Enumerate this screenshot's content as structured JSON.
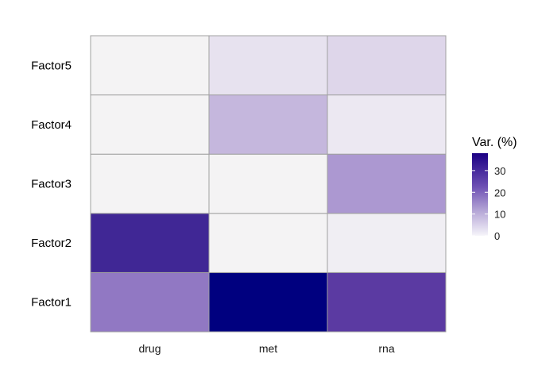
{
  "chart_data": {
    "type": "heatmap",
    "title": "",
    "xlabel": "",
    "ylabel": "",
    "x_categories": [
      "drug",
      "met",
      "rna"
    ],
    "y_categories": [
      "Factor1",
      "Factor2",
      "Factor3",
      "Factor4",
      "Factor5"
    ],
    "values": [
      [
        18.0,
        38.0,
        28.0
      ],
      [
        32.0,
        0.1,
        1.0
      ],
      [
        0.1,
        0.1,
        14.0
      ],
      [
        0.1,
        10.0,
        2.0
      ],
      [
        0.1,
        3.0,
        5.0
      ]
    ],
    "legend": {
      "title": "Var. (%)",
      "ticks": [
        0,
        10,
        20,
        30
      ],
      "range": [
        0,
        38
      ],
      "low_color": "#f4f4f4",
      "high_color": "#00007f",
      "placement": "right"
    },
    "grid": false
  }
}
